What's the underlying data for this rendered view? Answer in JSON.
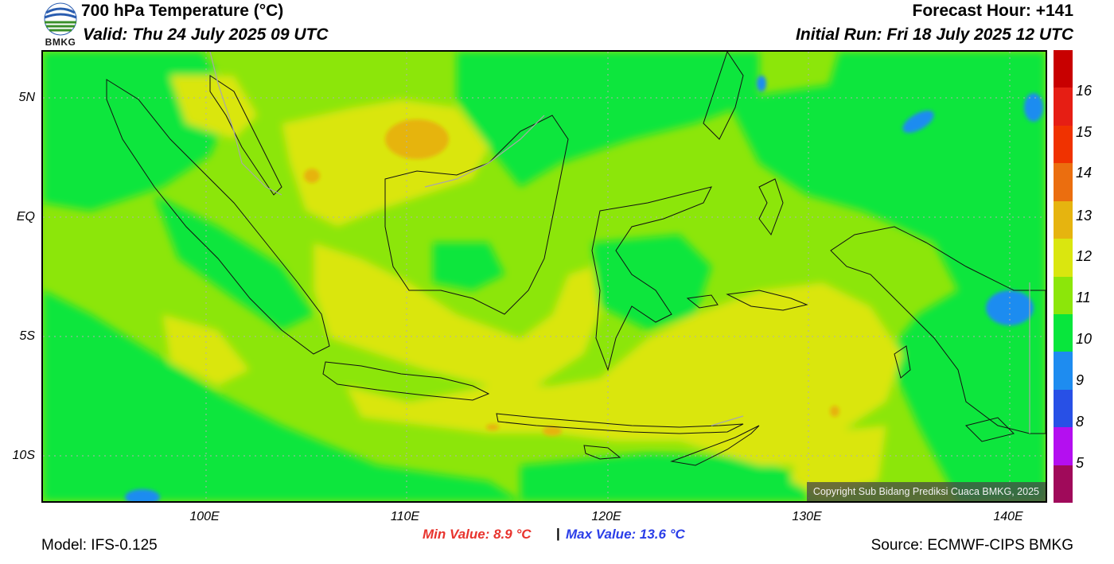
{
  "header": {
    "title": "700 hPa Temperature (°C)",
    "valid": "Valid: Thu 24 July 2025 09 UTC",
    "forecast_hour": "Forecast Hour: +141",
    "initial_run": "Initial Run: Fri 18 July 2025 12 UTC"
  },
  "logo": {
    "text": "BMKG",
    "icon": "bmkg-logo-icon"
  },
  "map": {
    "lat_labels": [
      "5N",
      "EQ",
      "5S",
      "10S"
    ],
    "lon_labels": [
      "100E",
      "110E",
      "120E",
      "130E",
      "140E"
    ],
    "copyright": "Copyright Sub Bidang Prediksi Cuaca BMKG, 2025",
    "colors": {
      "green_10_11": "#08e63c",
      "lightgreen_11_12": "#8ce60a",
      "yellow_12_13": "#dae60f",
      "orange_13_14": "#e6b40f",
      "blue_9_10": "#1e8cf0"
    }
  },
  "colorbar": {
    "labels": [
      "16",
      "15",
      "14",
      "13",
      "12",
      "11",
      "10",
      "9",
      "8",
      "5"
    ],
    "colors": [
      "#c80000",
      "#e61e14",
      "#f03200",
      "#eb6e0f",
      "#e6b40f",
      "#dae60f",
      "#8ce60a",
      "#08e63c",
      "#1e8cf0",
      "#2850e6",
      "#b40ff0",
      "#a00a5a"
    ]
  },
  "footer": {
    "min_value": "Min Value: 8.9 °C",
    "separator": "|",
    "max_value": "Max Value: 13.6 °C",
    "model": "Model: IFS-0.125",
    "source": "Source: ECMWF-CIPS BMKG"
  }
}
